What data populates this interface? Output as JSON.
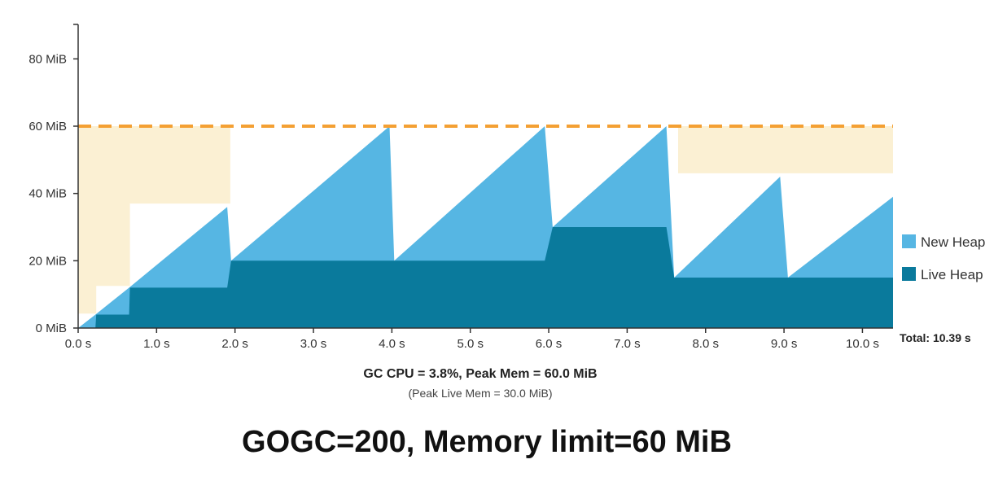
{
  "chart_data": {
    "type": "area",
    "xlim": [
      0,
      10.39
    ],
    "ylim": [
      0,
      90
    ],
    "x_ticks": [
      0,
      1,
      2,
      3,
      4,
      5,
      6,
      7,
      8,
      9,
      10
    ],
    "x_tick_labels": [
      "0.0 s",
      "1.0 s",
      "2.0 s",
      "3.0 s",
      "4.0 s",
      "5.0 s",
      "6.0 s",
      "7.0 s",
      "8.0 s",
      "9.0 s",
      "10.0 s"
    ],
    "y_ticks": [
      0,
      20,
      40,
      60,
      80
    ],
    "y_tick_labels": [
      "0 MiB",
      "20 MiB",
      "40 MiB",
      "60 MiB",
      "80 MiB"
    ],
    "memory_limit": 60,
    "total_label": "Total: 10.39 s",
    "summary_line1": "GC CPU = 3.8%, Peak Mem = 60.0 MiB",
    "summary_line2": "(Peak Live Mem = 30.0 MiB)",
    "caption": "GOGC=200, Memory limit=60 MiB",
    "series": [
      {
        "name": "New Heap",
        "color": "#56b6e3",
        "points": [
          [
            0,
            0
          ],
          [
            0.22,
            4
          ],
          [
            0.65,
            12
          ],
          [
            1.9,
            36
          ],
          [
            1.95,
            20
          ],
          [
            3.97,
            60
          ],
          [
            4.03,
            20
          ],
          [
            5.95,
            60
          ],
          [
            6.05,
            30
          ],
          [
            7.5,
            60
          ],
          [
            7.6,
            15
          ],
          [
            8.95,
            45
          ],
          [
            9.05,
            15
          ],
          [
            10.39,
            39
          ]
        ]
      },
      {
        "name": "Live Heap",
        "color": "#0a7a9c",
        "points": [
          [
            0,
            0
          ],
          [
            0.22,
            0
          ],
          [
            0.23,
            4
          ],
          [
            0.65,
            4
          ],
          [
            0.66,
            12
          ],
          [
            1.9,
            12
          ],
          [
            1.95,
            20
          ],
          [
            3.97,
            20
          ],
          [
            4.03,
            20
          ],
          [
            5.95,
            20
          ],
          [
            6.05,
            30
          ],
          [
            7.5,
            30
          ],
          [
            7.6,
            15
          ],
          [
            10.39,
            15
          ]
        ]
      }
    ],
    "headroom_color": "#fbf0d3",
    "headroom_regions": [
      [
        [
          0,
          60
        ],
        [
          1.94,
          60
        ],
        [
          1.94,
          37
        ],
        [
          0.66,
          37
        ],
        [
          0.66,
          12.5
        ],
        [
          0.23,
          12.5
        ],
        [
          0.23,
          4.3
        ],
        [
          0,
          4.3
        ]
      ],
      [
        [
          7.65,
          60
        ],
        [
          10.39,
          60
        ],
        [
          10.39,
          46
        ],
        [
          7.65,
          46
        ]
      ]
    ],
    "limit_color": "#f4a033",
    "legend_position": "right"
  }
}
